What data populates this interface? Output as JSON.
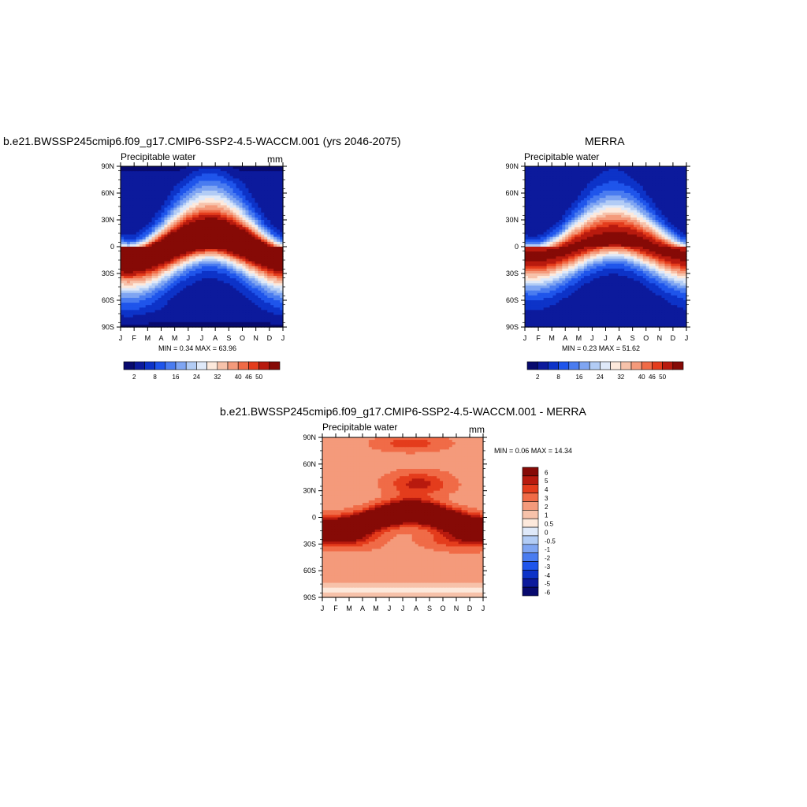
{
  "months": [
    "J",
    "F",
    "M",
    "A",
    "M",
    "J",
    "J",
    "A",
    "S",
    "O",
    "N",
    "D",
    "J"
  ],
  "lat_ticks": [
    "90N",
    "60N",
    "30N",
    "0",
    "30S",
    "60S",
    "90S"
  ],
  "colors_main": [
    "#080a6e",
    "#0c1a9c",
    "#0d33c8",
    "#1f55eb",
    "#4a7cf0",
    "#7fa5f2",
    "#b2ccf5",
    "#dfe9f9",
    "#fde9dc",
    "#f7c2aa",
    "#f49a7b",
    "#f06b47",
    "#e43c1c",
    "#b81a0e",
    "#860a06"
  ],
  "colors_diff": [
    "#080a6e",
    "#0c1a9c",
    "#0d33c8",
    "#1f55eb",
    "#4a7cf0",
    "#7fa5f2",
    "#b2ccf5",
    "#dfe9f9",
    "#fde9dc",
    "#f7c2aa",
    "#f49a7b",
    "#f06b47",
    "#e43c1c",
    "#b81a0e",
    "#860a06"
  ],
  "panel1": {
    "title": "b.e21.BWSSP245cmip6.f09_g17.CMIP6-SSP2-4.5-WACCM.001 (yrs 2046-2075)",
    "variable": "Precipitable water",
    "units": "mm",
    "minmax": "MIN =   0.34 MAX =  63.96"
  },
  "panel2": {
    "title": "MERRA",
    "variable": "Precipitable water",
    "minmax": "MIN =   0.23 MAX =  51.62"
  },
  "panel3": {
    "title": "b.e21.BWSSP245cmip6.f09_g17.CMIP6-SSP2-4.5-WACCM.001 - MERRA",
    "variable": "Precipitable water",
    "units": "mm",
    "minmax": "MIN =   0.06 MAX =  14.34"
  },
  "colorbar_main_labels": [
    "2",
    "8",
    "16",
    "24",
    "32",
    "40",
    "46",
    "50"
  ],
  "colorbar_diff_labels": [
    "6",
    "5",
    "4",
    "3",
    "2",
    "1",
    "0.5",
    "0",
    "-0.5",
    "-1",
    "-2",
    "-3",
    "-4",
    "-5",
    "-6"
  ],
  "chart_data": [
    {
      "type": "heatmap",
      "title": "b.e21.BWSSP245cmip6.f09_g17.CMIP6-SSP2-4.5-WACCM.001 (yrs 2046-2075)",
      "subtitle": "Precipitable water",
      "units": "mm",
      "x": [
        "J",
        "F",
        "M",
        "A",
        "M",
        "J",
        "J",
        "A",
        "S",
        "O",
        "N",
        "D",
        "J"
      ],
      "y": [
        "90N",
        "60N",
        "30N",
        "0",
        "30S",
        "60S",
        "90S"
      ],
      "min": 0.34,
      "max": 63.96,
      "contour_levels": [
        2,
        8,
        16,
        24,
        32,
        40,
        46,
        50
      ],
      "description_values": {
        "itcz_peak_lat_by_month": [
          -2,
          -3,
          -3,
          0,
          4,
          7,
          9,
          10,
          8,
          5,
          2,
          -1,
          -2
        ],
        "peak_value": 63.96
      }
    },
    {
      "type": "heatmap",
      "title": "MERRA",
      "subtitle": "Precipitable water",
      "x": [
        "J",
        "F",
        "M",
        "A",
        "M",
        "J",
        "J",
        "A",
        "S",
        "O",
        "N",
        "D",
        "J"
      ],
      "y": [
        "90N",
        "60N",
        "30N",
        "0",
        "30S",
        "60S",
        "90S"
      ],
      "min": 0.23,
      "max": 51.62,
      "contour_levels": [
        2,
        8,
        16,
        24,
        32,
        40,
        46,
        50
      ],
      "description_values": {
        "itcz_peak_lat_by_month": [
          -2,
          -3,
          -3,
          0,
          4,
          7,
          9,
          10,
          8,
          5,
          2,
          -1,
          -2
        ],
        "peak_value": 51.62
      }
    },
    {
      "type": "heatmap",
      "title": "b.e21.BWSSP245cmip6.f09_g17.CMIP6-SSP2-4.5-WACCM.001 - MERRA",
      "subtitle": "Precipitable water",
      "units": "mm",
      "x": [
        "J",
        "F",
        "M",
        "A",
        "M",
        "J",
        "J",
        "A",
        "S",
        "O",
        "N",
        "D",
        "J"
      ],
      "y": [
        "90N",
        "60N",
        "30N",
        "0",
        "30S",
        "60S",
        "90S"
      ],
      "min": 0.06,
      "max": 14.34,
      "contour_levels": [
        -6,
        -5,
        -4,
        -3,
        -2,
        -1,
        -0.5,
        0,
        0.5,
        1,
        2,
        3,
        4,
        5,
        6
      ]
    }
  ]
}
